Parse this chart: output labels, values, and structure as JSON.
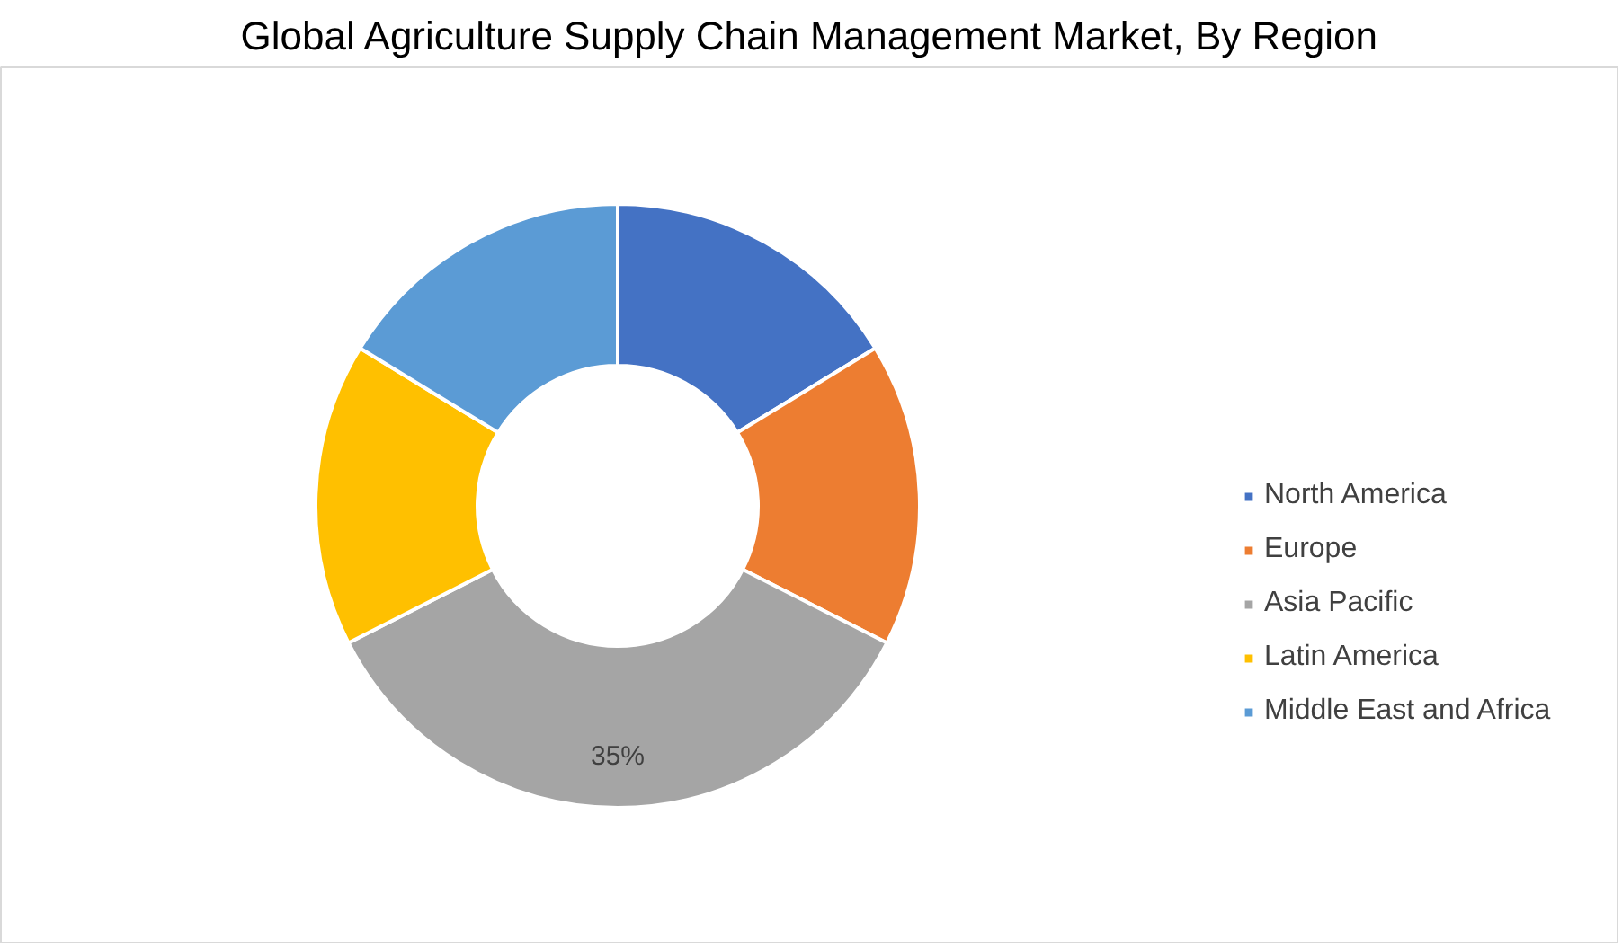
{
  "chart_data": {
    "type": "donut",
    "title": "Global Agriculture Supply Chain Management Market, By Region",
    "categories": [
      "North America",
      "Europe",
      "Asia Pacific",
      "Latin America",
      "Middle East and Africa"
    ],
    "values": [
      16.25,
      16.25,
      35,
      16.25,
      16.25
    ],
    "colors": [
      "#4472c4",
      "#ed7d31",
      "#a5a5a5",
      "#ffc000",
      "#5b9bd5"
    ],
    "value_labels": [
      null,
      null,
      "35%",
      null,
      null
    ],
    "legend": "right"
  }
}
